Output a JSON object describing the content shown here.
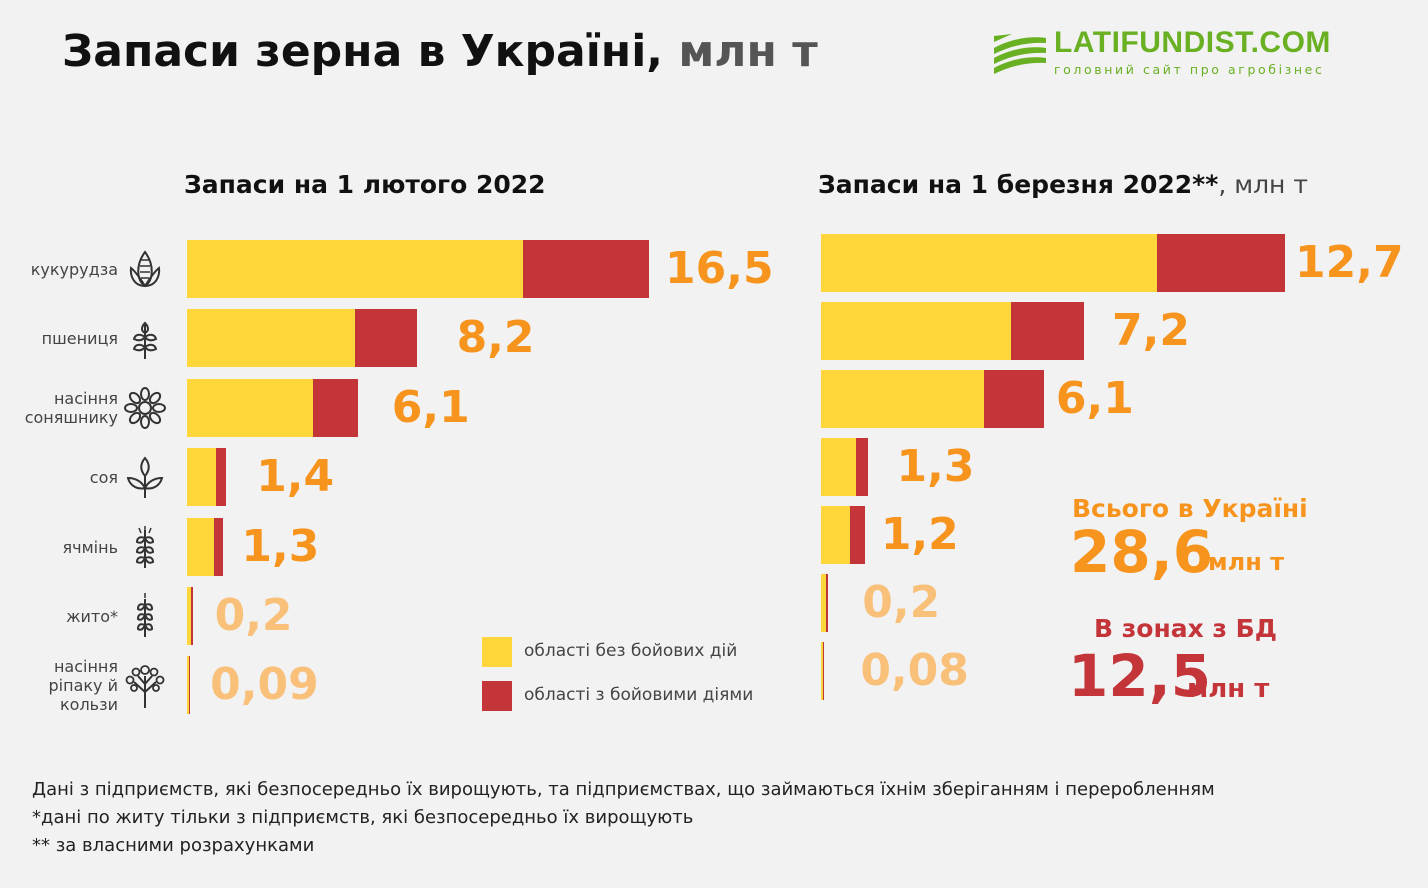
{
  "title": {
    "main": "Запаси зерна в Україні,",
    "unit": "млн т"
  },
  "logo": {
    "name": "LATIFUNDIST.COM",
    "tagline": "головний сайт про агробізнес",
    "color": "#6ab023"
  },
  "colors": {
    "no_combat": "#ffd73a",
    "combat": "#c4353a",
    "value_label": "#f7941d",
    "value_label_small": "#f9c07a"
  },
  "categories": [
    {
      "label_lines": [
        "кукурудза"
      ],
      "icon": "corn-icon"
    },
    {
      "label_lines": [
        "пшениця"
      ],
      "icon": "wheat-icon"
    },
    {
      "label_lines": [
        "насіння",
        "соняшнику"
      ],
      "icon": "sunflower-icon"
    },
    {
      "label_lines": [
        "соя"
      ],
      "icon": "soy-sprout-icon"
    },
    {
      "label_lines": [
        "ячмінь"
      ],
      "icon": "barley-icon"
    },
    {
      "label_lines": [
        "жито*"
      ],
      "icon": "rye-icon"
    },
    {
      "label_lines": [
        "насіння",
        "ріпаку й",
        "кользи"
      ],
      "icon": "rapeseed-icon"
    }
  ],
  "chart_data": [
    {
      "type": "bar",
      "orientation": "horizontal",
      "stacked": true,
      "title": "Запаси на 1 лютого 2022",
      "categories": [
        "кукурудза",
        "пшениця",
        "насіння соняшнику",
        "соя",
        "ячмінь",
        "жито*",
        "насіння ріпаку й кользи"
      ],
      "series": [
        {
          "name": "області без бойових дій",
          "values": [
            12.0,
            6.0,
            4.5,
            1.05,
            0.95,
            0.14,
            0.06
          ]
        },
        {
          "name": "області з бойовими діями",
          "values": [
            4.5,
            2.2,
            1.6,
            0.35,
            0.35,
            0.06,
            0.03
          ]
        }
      ],
      "totals": [
        "16,5",
        "8,2",
        "6,1",
        "1,4",
        "1,3",
        "0,2",
        "0,09"
      ],
      "legend": [
        {
          "label": "області без бойових дій",
          "color": "#ffd73a"
        },
        {
          "label": "області з бойовими діями",
          "color": "#c4353a"
        }
      ]
    },
    {
      "type": "bar",
      "orientation": "horizontal",
      "stacked": true,
      "title": "Запаси на 1 березня 2022**",
      "title_unit": ", млн т",
      "categories": [
        "кукурудза",
        "пшениця",
        "насіння соняшнику",
        "соя",
        "ячмінь",
        "жито*",
        "насіння ріпаку й кользи"
      ],
      "series": [
        {
          "name": "області без бойових дій",
          "values": [
            9.2,
            5.2,
            4.45,
            0.95,
            0.8,
            0.14,
            0.05
          ]
        },
        {
          "name": "області з бойовими діями",
          "values": [
            3.5,
            2.0,
            1.65,
            0.35,
            0.4,
            0.06,
            0.03
          ]
        }
      ],
      "totals": [
        "12,7",
        "7,2",
        "6,1",
        "1,3",
        "1,2",
        "0,2",
        "0,08"
      ]
    }
  ],
  "summary": {
    "total_label": "Всього в Україні",
    "total_value": "28,6",
    "total_unit": "млн т",
    "zone_label": "В зонах з БД",
    "zone_value": "12,5",
    "zone_unit": "млн т"
  },
  "footnotes": [
    "Дані з підприємств, які безпосередньо їх вирощують, та підприємствах, що займаються їхнім зберіганням і переробленням",
    "*дані по житу  тільки з підприємств, які безпосередньо їх вирощують",
    "** за власними розрахунками"
  ]
}
